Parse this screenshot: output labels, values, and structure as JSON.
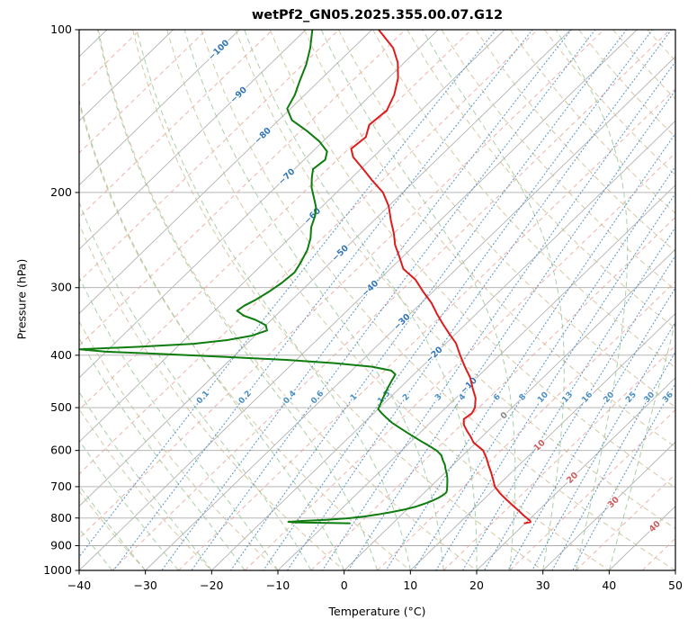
{
  "chart_data": {
    "type": "line",
    "variant": "skew-t-log-p",
    "title": "wetPf2_GN05.2025.355.00.07.G12",
    "xlabel": "Temperature (°C)",
    "ylabel": "Pressure (hPa)",
    "x_axis": {
      "min": -40,
      "max": 50,
      "ticks": [
        -40,
        -30,
        -20,
        -10,
        0,
        10,
        20,
        30,
        40,
        50
      ]
    },
    "pressure_axis": {
      "min": 100,
      "max": 1000,
      "log": true,
      "ticks": [
        100,
        200,
        300,
        400,
        500,
        600,
        700,
        800,
        900,
        1000
      ]
    },
    "skew": {
      "degC_per_decade": 84.2
    },
    "grid": {
      "isotherms": {
        "start": -140,
        "end": 50,
        "step": 10
      },
      "isotherm_minor_dashed": {
        "start": -135,
        "end": 55,
        "step": 10
      },
      "dry_adiabats_theta": {
        "start": -30,
        "end": 180,
        "step": 10
      },
      "moist_adiabats_thetaw": {
        "start": -40,
        "end": 40,
        "step": 5
      },
      "mixing_ratios_g_kg": [
        0.1,
        0.2,
        0.4,
        0.6,
        1,
        1.5,
        2,
        3,
        4,
        6,
        8,
        10,
        13,
        16,
        20,
        25,
        30,
        36
      ],
      "mixing_label_pressure": 478
    },
    "isotherm_labels": [
      {
        "t": -100,
        "p": 109
      },
      {
        "t": -90,
        "p": 132
      },
      {
        "t": -80,
        "p": 157
      },
      {
        "t": -70,
        "p": 187
      },
      {
        "t": -60,
        "p": 221
      },
      {
        "t": -50,
        "p": 259
      },
      {
        "t": -40,
        "p": 301
      },
      {
        "t": -30,
        "p": 347
      },
      {
        "t": -20,
        "p": 399
      },
      {
        "t": -10,
        "p": 455
      },
      {
        "t": 0,
        "p": 517
      },
      {
        "t": 10,
        "p": 587
      },
      {
        "t": 20,
        "p": 674
      },
      {
        "t": 30,
        "p": 748
      },
      {
        "t": 40,
        "p": 829
      }
    ],
    "series": [
      {
        "name": "temperature",
        "color": "#dd1c1c",
        "points": [
          [
            100,
            -79
          ],
          [
            108,
            -74
          ],
          [
            115,
            -71
          ],
          [
            123,
            -68.5
          ],
          [
            132,
            -66.5
          ],
          [
            141,
            -65.2
          ],
          [
            150,
            -65.6
          ],
          [
            158,
            -64.2
          ],
          [
            166,
            -64.6
          ],
          [
            172,
            -63
          ],
          [
            180,
            -60
          ],
          [
            190,
            -56.5
          ],
          [
            200,
            -53
          ],
          [
            212,
            -50
          ],
          [
            225,
            -47.5
          ],
          [
            238,
            -45
          ],
          [
            250,
            -43
          ],
          [
            263,
            -40.5
          ],
          [
            277,
            -38
          ],
          [
            290,
            -34.5
          ],
          [
            305,
            -31.5
          ],
          [
            320,
            -28.5
          ],
          [
            335,
            -26
          ],
          [
            350,
            -23.5
          ],
          [
            365,
            -21
          ],
          [
            380,
            -18.5
          ],
          [
            400,
            -16
          ],
          [
            420,
            -13.5
          ],
          [
            440,
            -11
          ],
          [
            460,
            -9
          ],
          [
            480,
            -7
          ],
          [
            500,
            -5.6
          ],
          [
            512,
            -5.2
          ],
          [
            525,
            -5.5
          ],
          [
            538,
            -4.6
          ],
          [
            552,
            -3.2
          ],
          [
            565,
            -1.8
          ],
          [
            580,
            -0.4
          ],
          [
            600,
            2.3
          ],
          [
            620,
            4
          ],
          [
            640,
            5.5
          ],
          [
            660,
            7
          ],
          [
            680,
            8.4
          ],
          [
            700,
            9.7
          ],
          [
            720,
            11.5
          ],
          [
            740,
            13.5
          ],
          [
            760,
            15.5
          ],
          [
            778,
            17.3
          ],
          [
            792,
            18.6
          ],
          [
            802,
            19.6
          ],
          [
            809,
            20.3
          ],
          [
            814,
            20.6
          ],
          [
            818,
            19.9
          ]
        ]
      },
      {
        "name": "dewpoint",
        "color": "#0e7c0e",
        "points": [
          [
            100,
            -89
          ],
          [
            108,
            -86.5
          ],
          [
            116,
            -84.5
          ],
          [
            124,
            -83
          ],
          [
            132,
            -81.5
          ],
          [
            140,
            -80.5
          ],
          [
            147,
            -78
          ],
          [
            154,
            -74
          ],
          [
            161,
            -70.5
          ],
          [
            168,
            -67.8
          ],
          [
            174,
            -66.8
          ],
          [
            181,
            -67.2
          ],
          [
            188,
            -66
          ],
          [
            196,
            -64.5
          ],
          [
            205,
            -62.5
          ],
          [
            213,
            -60.8
          ],
          [
            221,
            -59.6
          ],
          [
            232,
            -58.4
          ],
          [
            243,
            -56.8
          ],
          [
            255,
            -55.5
          ],
          [
            268,
            -54.6
          ],
          [
            281,
            -53.9
          ],
          [
            294,
            -54.2
          ],
          [
            306,
            -54.8
          ],
          [
            316,
            -55.5
          ],
          [
            324,
            -56.3
          ],
          [
            331,
            -56.6
          ],
          [
            338,
            -54.8
          ],
          [
            344,
            -52.4
          ],
          [
            352,
            -50
          ],
          [
            360,
            -49
          ],
          [
            368,
            -50.5
          ],
          [
            375,
            -53.5
          ],
          [
            381,
            -58
          ],
          [
            386,
            -66
          ],
          [
            390,
            -74.4
          ],
          [
            394,
            -70
          ],
          [
            398,
            -61
          ],
          [
            403,
            -51
          ],
          [
            408,
            -41.5
          ],
          [
            414,
            -33.5
          ],
          [
            420,
            -27.5
          ],
          [
            427,
            -24
          ],
          [
            434,
            -22.8
          ],
          [
            445,
            -22.4
          ],
          [
            458,
            -21.9
          ],
          [
            470,
            -21.4
          ],
          [
            482,
            -20.9
          ],
          [
            493,
            -20.4
          ],
          [
            503,
            -20
          ],
          [
            512,
            -18.8
          ],
          [
            522,
            -17.4
          ],
          [
            533,
            -15.8
          ],
          [
            545,
            -13.8
          ],
          [
            557,
            -11.8
          ],
          [
            569,
            -9.8
          ],
          [
            580,
            -8
          ],
          [
            590,
            -6.3
          ],
          [
            601,
            -4.6
          ],
          [
            613,
            -3.2
          ],
          [
            625,
            -2.3
          ],
          [
            637,
            -1.3
          ],
          [
            649,
            -0.5
          ],
          [
            662,
            0.4
          ],
          [
            675,
            1.2
          ],
          [
            688,
            1.9
          ],
          [
            700,
            2.5
          ],
          [
            710,
            3
          ],
          [
            718,
            3.3
          ],
          [
            726,
            3.2
          ],
          [
            735,
            2.9
          ],
          [
            744,
            2.4
          ],
          [
            753,
            1.7
          ],
          [
            762,
            0.9
          ],
          [
            771,
            -0.3
          ],
          [
            780,
            -1.9
          ],
          [
            788,
            -3.6
          ],
          [
            795,
            -5.4
          ],
          [
            801,
            -7.6
          ],
          [
            806,
            -10.5
          ],
          [
            810,
            -14
          ],
          [
            813,
            -16
          ],
          [
            815,
            -15
          ],
          [
            818,
            -6.5
          ]
        ]
      }
    ],
    "colors": {
      "isotherm": "#b3b3b3",
      "isotherm_dashed": "#eba59b",
      "dry_adiabat": "#cdb98e",
      "moist_adiabat": "#92c492",
      "mixing_ratio": "#4b8ec4",
      "label_negative": "#3076b8",
      "label_zero": "#8a8a8a",
      "label_positive": "#cd5c5c",
      "grid": "#ababab",
      "spine": "#000000"
    }
  }
}
